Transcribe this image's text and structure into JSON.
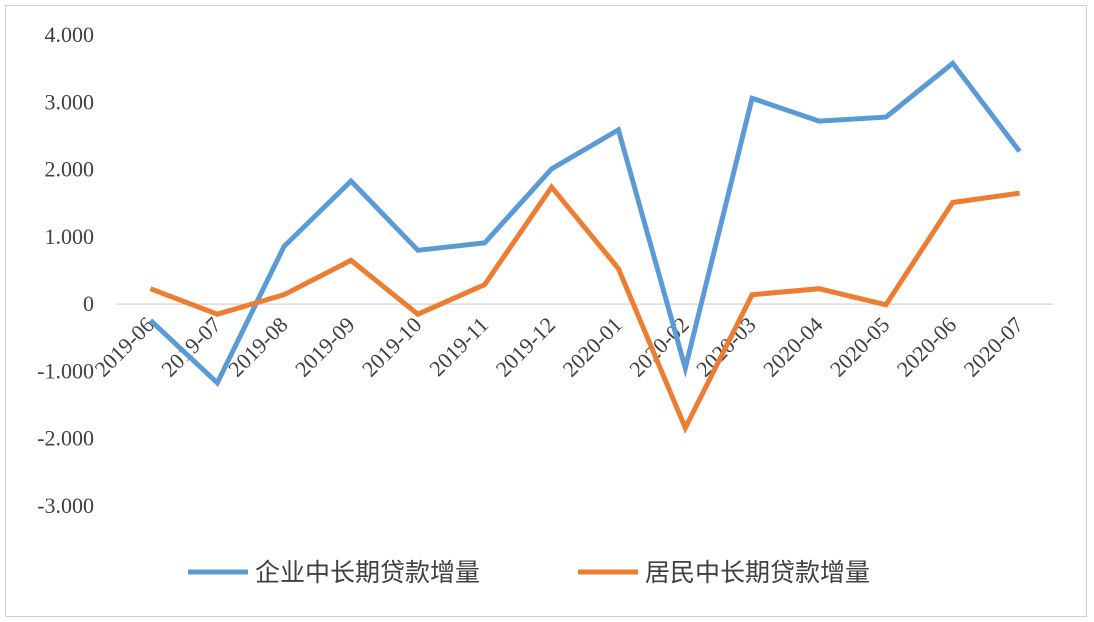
{
  "chart_data": {
    "type": "line",
    "title": "",
    "xlabel": "",
    "ylabel": "",
    "categories": [
      "2019-06",
      "2019-07",
      "2019-08",
      "2019-09",
      "2019-10",
      "2019-11",
      "2019-12",
      "2020-01",
      "2020-02",
      "2020-03",
      "2020-04",
      "2020-05",
      "2020-06",
      "2020-07"
    ],
    "series": [
      {
        "name": "企业中长期贷款增量",
        "color": "#5b9bd5",
        "values": [
          -0.24,
          -1.17,
          0.86,
          1.83,
          0.8,
          0.91,
          2.01,
          2.59,
          -0.95,
          3.06,
          2.72,
          2.78,
          3.58,
          2.27
        ]
      },
      {
        "name": "居民中长期贷款增量",
        "color": "#ed7d31",
        "values": [
          0.23,
          -0.15,
          0.14,
          0.65,
          -0.15,
          0.29,
          1.74,
          0.53,
          -1.84,
          0.14,
          0.23,
          -0.01,
          1.51,
          1.65
        ]
      }
    ],
    "ylim": [
      -3,
      4
    ],
    "yticks": [
      "4.000",
      "3.000",
      "2.000",
      "1.000",
      "0",
      "-1.000",
      "-2.000",
      "-3.000"
    ],
    "ytick_values": [
      4,
      3,
      2,
      1,
      0,
      -1,
      -2,
      -3
    ],
    "grid": false,
    "legend_position": "bottom",
    "axis_color": "#d9d9d9"
  }
}
